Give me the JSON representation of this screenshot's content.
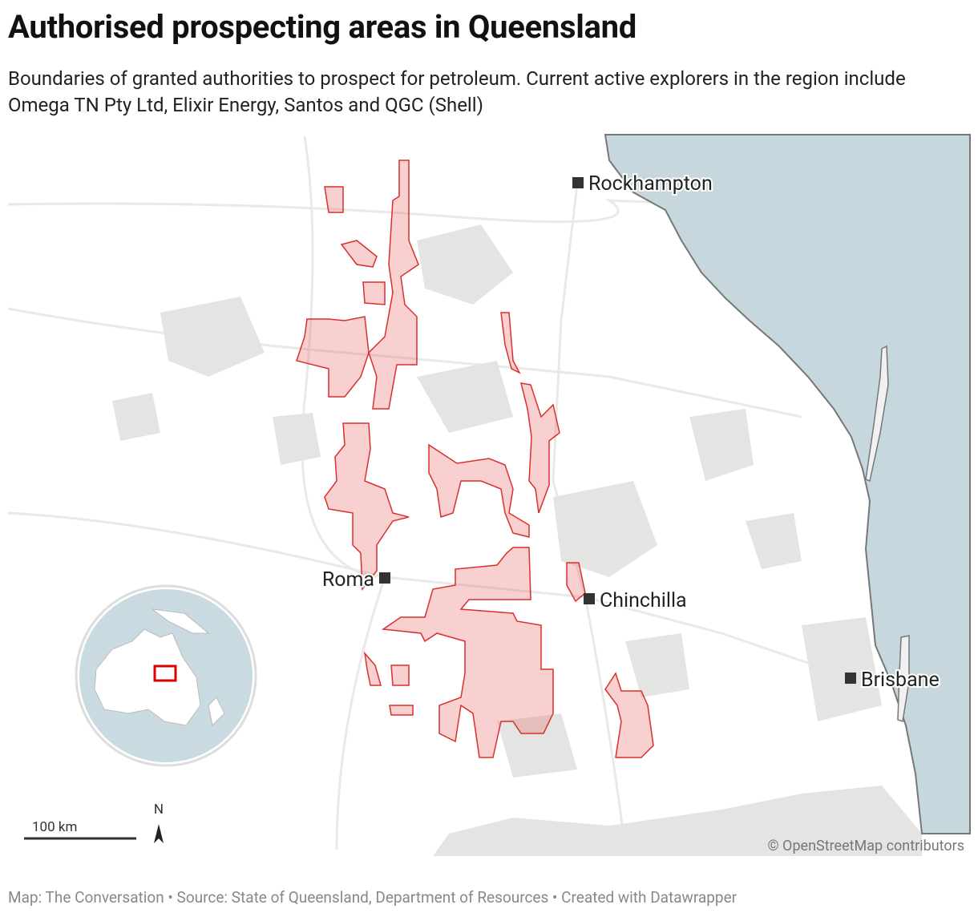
{
  "header": {
    "title": "Authorised prospecting areas in Queensland",
    "subtitle": "Boundaries of granted authorities to prospect for petroleum. Current active explorers in the region include Omega TN Pty Ltd, Elixir Energy, Santos and QGC (Shell)"
  },
  "map": {
    "places": [
      "Rockhampton",
      "Roma",
      "Chinchilla",
      "Brisbane"
    ],
    "scale_label": "100 km",
    "north_label": "N",
    "attribution": "© OpenStreetMap contributors"
  },
  "footer": "Map: The Conversation • Source: State of Queensland, Department of Resources • Created with Datawrapper"
}
